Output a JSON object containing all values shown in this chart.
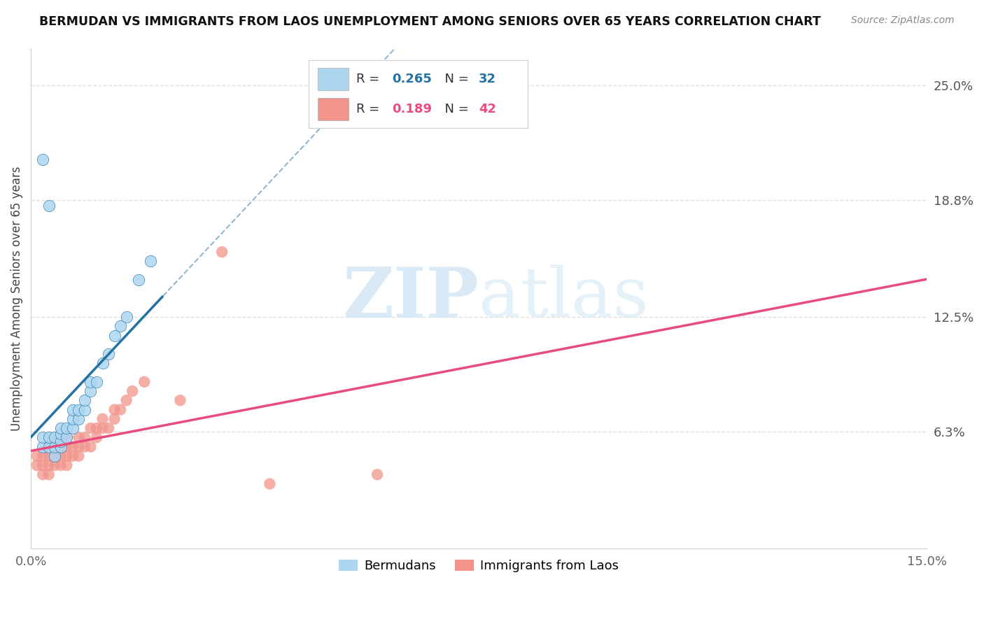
{
  "title": "BERMUDAN VS IMMIGRANTS FROM LAOS UNEMPLOYMENT AMONG SENIORS OVER 65 YEARS CORRELATION CHART",
  "source": "Source: ZipAtlas.com",
  "ylabel": "Unemployment Among Seniors over 65 years",
  "xlim": [
    0.0,
    0.15
  ],
  "ylim": [
    0.0,
    0.27
  ],
  "right_yticks": [
    0.063,
    0.125,
    0.188,
    0.25
  ],
  "right_yticklabels": [
    "6.3%",
    "12.5%",
    "18.8%",
    "25.0%"
  ],
  "bermudans_x": [
    0.002,
    0.002,
    0.003,
    0.003,
    0.004,
    0.004,
    0.004,
    0.005,
    0.005,
    0.005,
    0.005,
    0.006,
    0.006,
    0.007,
    0.007,
    0.007,
    0.008,
    0.008,
    0.009,
    0.009,
    0.01,
    0.01,
    0.011,
    0.012,
    0.013,
    0.014,
    0.015,
    0.016,
    0.018,
    0.02,
    0.002,
    0.003
  ],
  "bermudans_y": [
    0.055,
    0.06,
    0.055,
    0.06,
    0.05,
    0.055,
    0.06,
    0.055,
    0.058,
    0.062,
    0.065,
    0.06,
    0.065,
    0.065,
    0.07,
    0.075,
    0.07,
    0.075,
    0.075,
    0.08,
    0.085,
    0.09,
    0.09,
    0.1,
    0.105,
    0.115,
    0.12,
    0.125,
    0.145,
    0.155,
    0.21,
    0.185
  ],
  "laos_x": [
    0.001,
    0.001,
    0.002,
    0.002,
    0.002,
    0.003,
    0.003,
    0.003,
    0.004,
    0.004,
    0.004,
    0.005,
    0.005,
    0.005,
    0.006,
    0.006,
    0.006,
    0.006,
    0.007,
    0.007,
    0.008,
    0.008,
    0.008,
    0.009,
    0.009,
    0.01,
    0.01,
    0.011,
    0.011,
    0.012,
    0.012,
    0.013,
    0.014,
    0.014,
    0.015,
    0.016,
    0.017,
    0.019,
    0.025,
    0.032,
    0.04,
    0.058
  ],
  "laos_y": [
    0.045,
    0.05,
    0.04,
    0.045,
    0.05,
    0.04,
    0.045,
    0.05,
    0.045,
    0.05,
    0.055,
    0.045,
    0.05,
    0.055,
    0.045,
    0.05,
    0.055,
    0.06,
    0.05,
    0.055,
    0.05,
    0.055,
    0.06,
    0.055,
    0.06,
    0.055,
    0.065,
    0.06,
    0.065,
    0.065,
    0.07,
    0.065,
    0.07,
    0.075,
    0.075,
    0.08,
    0.085,
    0.09,
    0.08,
    0.16,
    0.035,
    0.04
  ],
  "bermudans_color": "#aed6f1",
  "laos_color": "#f1948a",
  "bermudans_line_color": "#2471a3",
  "laos_line_color": "#e74c7c",
  "legend_r1": "0.265",
  "legend_n1": "32",
  "legend_r2": "0.189",
  "legend_n2": "42",
  "watermark_zip": "ZIP",
  "watermark_atlas": "atlas",
  "background_color": "#ffffff",
  "grid_color": "#e0e0e0"
}
